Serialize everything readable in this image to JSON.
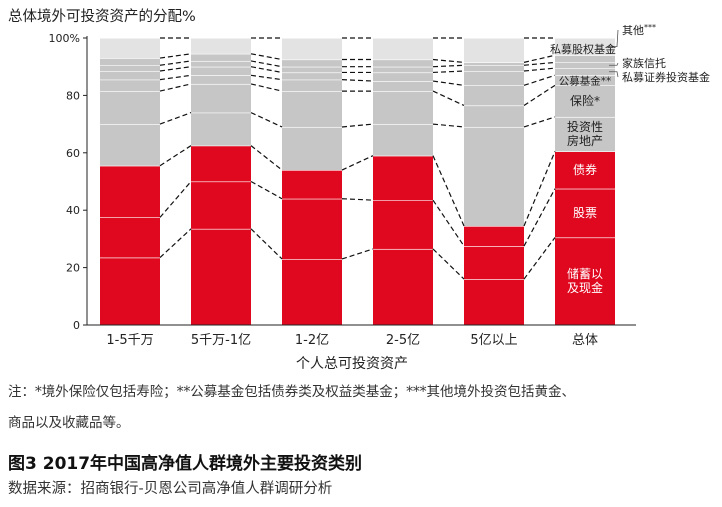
{
  "chart_data": {
    "type": "bar",
    "stacked": true,
    "title": "总体境外可投资资产的分配%",
    "xlabel": "个人总可投资资产",
    "ylabel": "",
    "ylim": [
      0,
      100
    ],
    "yticks": [
      "0",
      "20",
      "40",
      "60",
      "80",
      "100%"
    ],
    "categories": [
      "1-5千万",
      "5千万-1亿",
      "1-2亿",
      "2-5亿",
      "5亿以上",
      "总体"
    ],
    "colors": {
      "red": "#e0081f",
      "gray": "#c6c6c6",
      "light": "#e3e3e3",
      "sep": "#ffffff",
      "dash": "#111111"
    },
    "series": [
      {
        "name": "储蓄以及现金",
        "color": "red",
        "values": [
          23.5,
          33.5,
          23,
          26.5,
          16,
          30.5
        ]
      },
      {
        "name": "股票",
        "color": "red",
        "values": [
          14,
          16.5,
          21,
          17,
          11.5,
          17
        ]
      },
      {
        "name": "债券",
        "color": "red",
        "values": [
          18,
          12.5,
          10,
          15.5,
          7,
          13
        ]
      },
      {
        "name": "投资性房地产",
        "color": "gray",
        "values": [
          14.5,
          11.5,
          15,
          11,
          34.5,
          12
        ]
      },
      {
        "name": "保险*",
        "color": "gray",
        "values": [
          11.5,
          10,
          12.5,
          11.5,
          7.5,
          11
        ]
      },
      {
        "name": "公募基金**",
        "color": "gray",
        "values": [
          4,
          3,
          4,
          3.5,
          7,
          3.5
        ]
      },
      {
        "name": "私募证券投资基金",
        "color": "gray",
        "values": [
          3,
          3,
          2.5,
          3,
          5,
          2.5
        ]
      },
      {
        "name": "家族信托",
        "color": "gray",
        "values": [
          2,
          2,
          2,
          2,
          2,
          2
        ]
      },
      {
        "name": "私募股权基金",
        "color": "gray",
        "values": [
          2.5,
          2.5,
          2.5,
          2.5,
          1,
          2.5
        ]
      },
      {
        "name": "其他***",
        "color": "light",
        "values": [
          7,
          5.5,
          7.5,
          7.5,
          8.5,
          6
        ]
      }
    ],
    "inside_labels": [
      "储蓄以\n及现金",
      "股票",
      "债券",
      "投资性\n房地产",
      "保险*",
      "公募基金**",
      "",
      "",
      "",
      ""
    ],
    "outside_labels": [
      {
        "text": "其他",
        "sup": "***",
        "series": 9
      },
      {
        "text": "私募股权基金",
        "sup": "",
        "series": 8
      },
      {
        "text": "家族信托",
        "sup": "",
        "series": 7
      },
      {
        "text": "私募证券投资基金",
        "sup": "",
        "series": 6
      }
    ]
  },
  "notes": {
    "line1": "注：*境外保险仅包括寿险；**公募基金包括债券类及权益类基金；***其他境外投资包括黄金、",
    "line2": "商品以及收藏品等。"
  },
  "figure_title": "图3  2017年中国高净值人群境外主要投资类别",
  "source": "数据来源：招商银行-贝恩公司高净值人群调研分析"
}
